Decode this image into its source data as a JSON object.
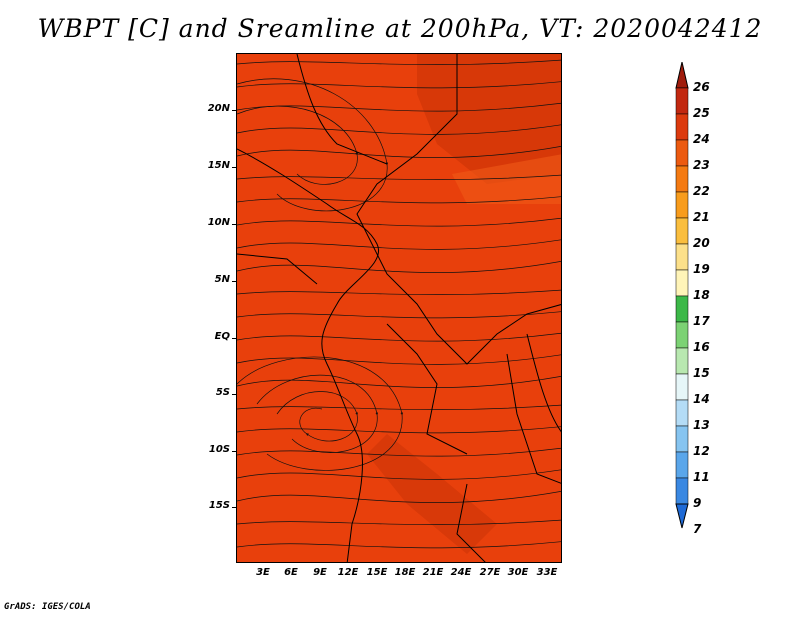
{
  "title": "WBPT [C] and Sreamline at 200hPa, VT: 2020042412",
  "credit": "GrADS: IGES/COLA",
  "map": {
    "field_color": "#e8400c",
    "darker_band_color": "#d23608",
    "lat_labels": [
      "20N",
      "15N",
      "10N",
      "5N",
      "EQ",
      "5S",
      "10S",
      "15S"
    ],
    "lon_labels": [
      "3E",
      "6E",
      "9E",
      "12E",
      "15E",
      "18E",
      "21E",
      "24E",
      "27E",
      "30E",
      "33E"
    ]
  },
  "colorbar": {
    "labels": [
      "26",
      "25",
      "24",
      "23",
      "22",
      "21",
      "20",
      "19",
      "18",
      "17",
      "16",
      "15",
      "14",
      "13",
      "12",
      "11",
      "9",
      "7"
    ],
    "colors": [
      "#a01c0c",
      "#c22810",
      "#dc3a0e",
      "#ec5a10",
      "#f47a12",
      "#f89c1c",
      "#fabe3e",
      "#fce08a",
      "#fff4b8",
      "#3cb848",
      "#7cd274",
      "#b8e8b0",
      "#e6f6f8",
      "#b4dcf6",
      "#86c4f0",
      "#5aa6ea",
      "#3a88e2",
      "#1e6ad6"
    ]
  }
}
